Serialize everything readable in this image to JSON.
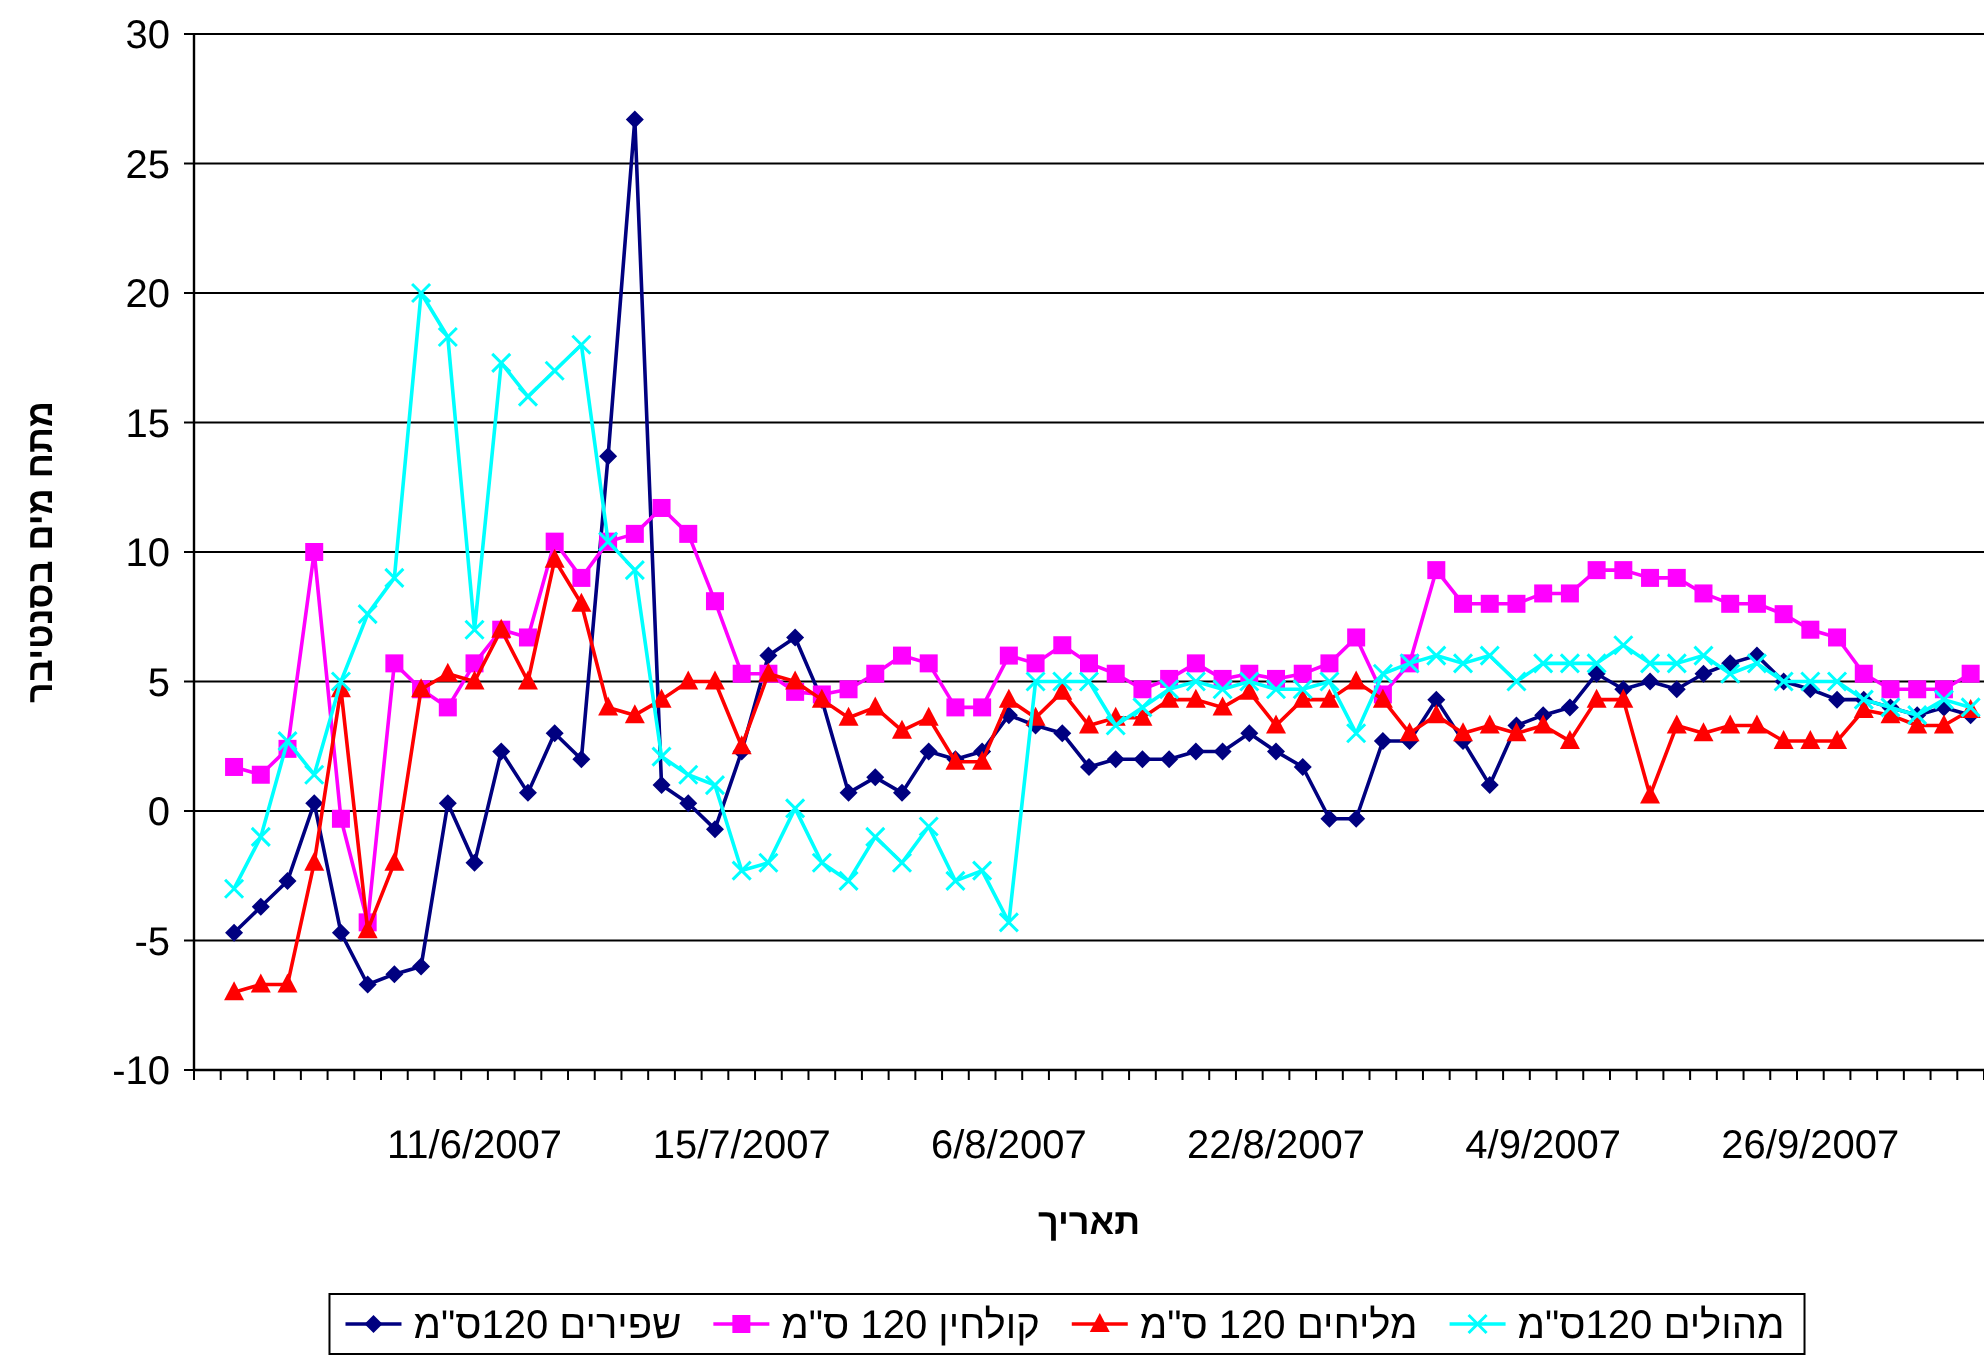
{
  "chart_data": {
    "type": "line",
    "ylabel": "מתח מים בסנטיבר",
    "xlabel": "תאריך",
    "categories": [
      null,
      null,
      null,
      null,
      null,
      null,
      null,
      null,
      null,
      null,
      "11/6/2007",
      null,
      null,
      null,
      null,
      null,
      null,
      null,
      null,
      null,
      "15/7/2007",
      null,
      null,
      null,
      null,
      null,
      null,
      null,
      null,
      null,
      "6/8/2007",
      null,
      null,
      null,
      null,
      null,
      null,
      null,
      null,
      null,
      "22/8/2007",
      null,
      null,
      null,
      null,
      null,
      null,
      null,
      null,
      null,
      "4/9/2007",
      null,
      null,
      null,
      null,
      null,
      null,
      null,
      null,
      null,
      "26/9/2007",
      null,
      null,
      null,
      null,
      null,
      null
    ],
    "series": [
      {
        "name": "שפירים 120ס\"מ",
        "color": "#000080",
        "marker": "diamond",
        "values": [
          null,
          -4.7,
          -3.7,
          -2.7,
          0.3,
          -4.7,
          -6.7,
          -6.3,
          -6.0,
          0.3,
          -2.0,
          2.3,
          0.7,
          3.0,
          2.0,
          13.7,
          26.7,
          1.0,
          0.3,
          -0.7,
          2.3,
          6.0,
          6.7,
          4.3,
          0.7,
          1.3,
          0.7,
          2.3,
          2.0,
          2.3,
          3.7,
          3.3,
          3.0,
          1.7,
          2.0,
          2.0,
          2.0,
          2.3,
          2.3,
          3.0,
          2.3,
          1.7,
          -0.3,
          -0.3,
          2.7,
          2.7,
          4.3,
          2.7,
          1.0,
          3.3,
          3.7,
          4.0,
          5.3,
          4.7,
          5.0,
          4.7,
          5.3,
          5.7,
          6.0,
          5.0,
          4.7,
          4.3,
          4.3,
          4.0,
          3.7,
          4.0,
          3.7
        ]
      },
      {
        "name": "קולחין 120 ס\"מ",
        "color": "#ff00ff",
        "marker": "square",
        "values": [
          null,
          1.7,
          1.4,
          2.4,
          10.0,
          -0.3,
          -4.3,
          5.7,
          4.7,
          4.0,
          5.7,
          7.0,
          6.7,
          10.4,
          9.0,
          10.4,
          10.7,
          11.7,
          10.7,
          8.1,
          5.3,
          5.3,
          4.6,
          4.5,
          4.7,
          5.3,
          6.0,
          5.7,
          4.0,
          4.0,
          6.0,
          5.7,
          6.4,
          5.7,
          5.3,
          4.7,
          5.1,
          5.7,
          5.1,
          5.3,
          5.1,
          5.3,
          5.7,
          6.7,
          4.5,
          5.7,
          9.3,
          8.0,
          8.0,
          8.0,
          8.4,
          8.4,
          9.3,
          9.3,
          9.0,
          9.0,
          8.4,
          8.0,
          8.0,
          7.6,
          7.0,
          6.7,
          5.3,
          4.7,
          4.7,
          4.7,
          5.3
        ]
      },
      {
        "name": "מליחים 120 ס\"מ",
        "color": "#ff0000",
        "marker": "triangle",
        "values": [
          null,
          -7.0,
          -6.7,
          -6.7,
          -2.0,
          4.7,
          -4.6,
          -2.0,
          4.7,
          5.3,
          5.0,
          7.0,
          5.0,
          9.7,
          8.0,
          4.0,
          3.7,
          4.3,
          5.0,
          5.0,
          2.5,
          5.3,
          5.0,
          4.3,
          3.6,
          4.0,
          3.1,
          3.6,
          1.9,
          1.9,
          4.3,
          3.6,
          4.6,
          3.3,
          3.6,
          3.6,
          4.3,
          4.3,
          4.0,
          4.6,
          3.3,
          4.3,
          4.3,
          5.0,
          4.3,
          3.0,
          3.7,
          3.0,
          3.3,
          3.0,
          3.3,
          2.7,
          4.3,
          4.3,
          0.6,
          3.3,
          3.0,
          3.3,
          3.3,
          2.7,
          2.7,
          2.7,
          3.9,
          3.7,
          3.3,
          3.3,
          3.9
        ]
      },
      {
        "name": "מהולים 120ס\"מ",
        "color": "#00ffff",
        "marker": "cross",
        "values": [
          null,
          -3.0,
          -1.0,
          2.7,
          1.4,
          5.0,
          7.6,
          9.0,
          20.0,
          18.3,
          7.0,
          17.3,
          16.0,
          17.0,
          18.0,
          10.4,
          9.3,
          2.1,
          1.4,
          1.0,
          -2.3,
          -2.0,
          0.1,
          -2.0,
          -2.7,
          -1.0,
          -2.0,
          -0.6,
          -2.7,
          -2.3,
          -4.3,
          5.0,
          5.0,
          5.0,
          3.3,
          4.0,
          4.7,
          5.0,
          4.7,
          5.0,
          4.7,
          4.7,
          5.0,
          3.0,
          5.3,
          5.7,
          6.0,
          5.7,
          6.0,
          5.0,
          5.7,
          5.7,
          5.7,
          6.4,
          5.7,
          5.7,
          6.0,
          5.3,
          5.7,
          5.0,
          5.0,
          5.0,
          4.3,
          4.0,
          3.7,
          4.3,
          4.0
        ]
      }
    ],
    "ylim": [
      -10,
      30
    ],
    "yticks": [
      -10,
      -5,
      0,
      5,
      10,
      15,
      20,
      25,
      30
    ],
    "grid": "y",
    "legend": "bottom"
  }
}
